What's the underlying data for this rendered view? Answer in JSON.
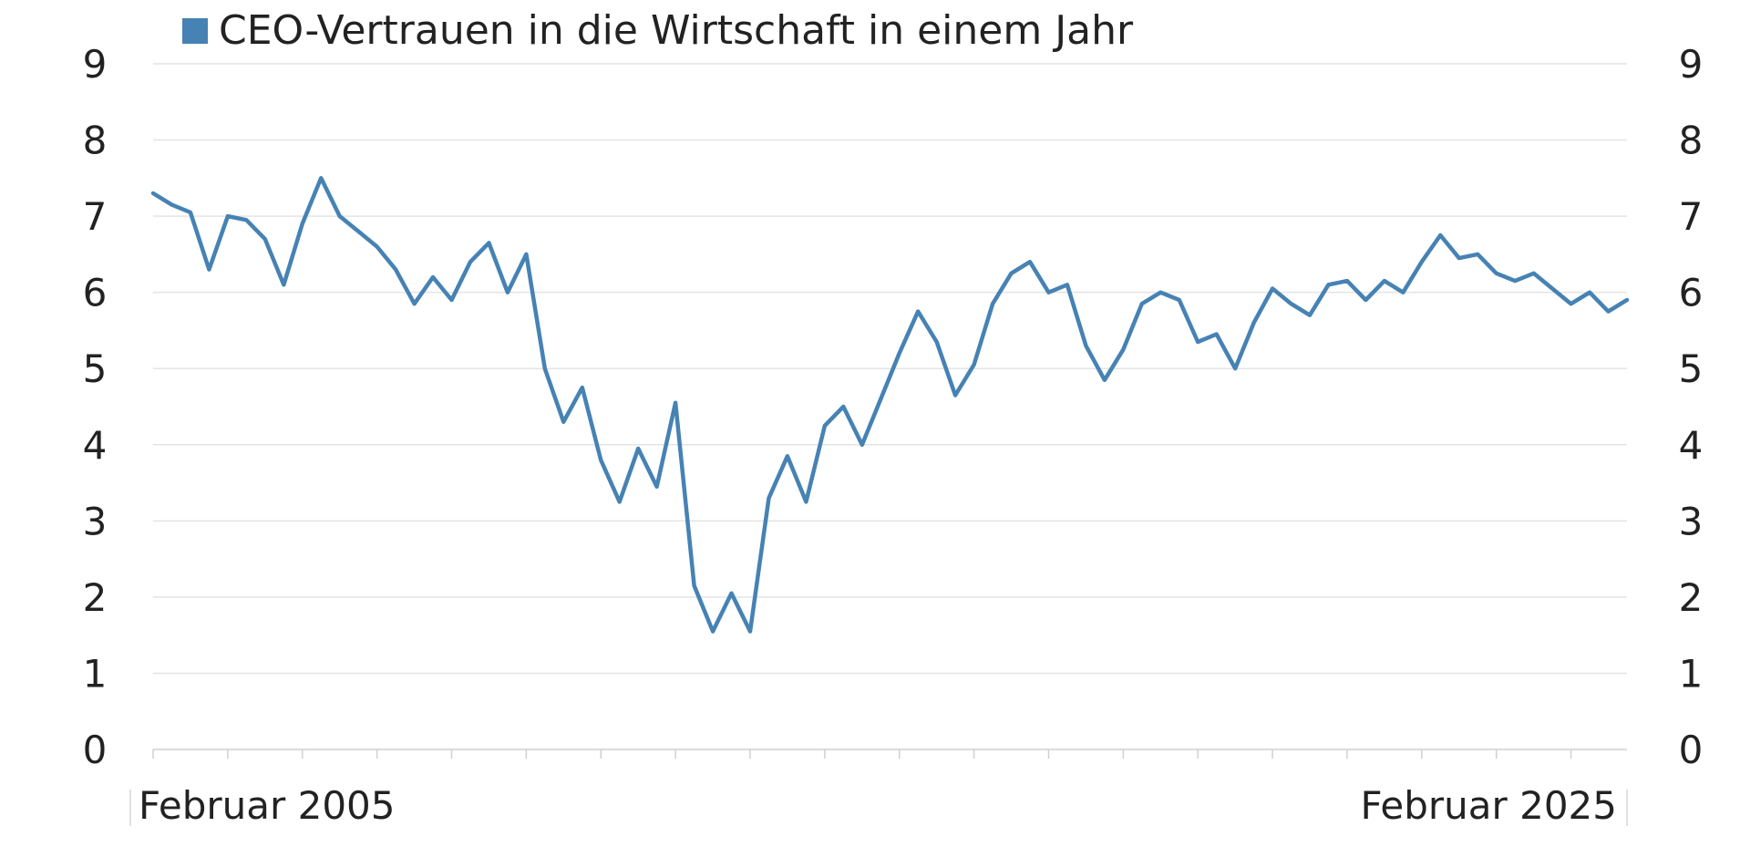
{
  "chart_data": {
    "type": "line",
    "legend": {
      "label": "CEO-Vertrauen in die Wirtschaft in einem Jahr",
      "color": "#4682b4",
      "placement": "top-left"
    },
    "x_start_label": "Februar 2005",
    "x_end_label": "Februar 2025",
    "ylim": [
      0,
      9
    ],
    "yticks": [
      "0",
      "1",
      "2",
      "3",
      "4",
      "5",
      "6",
      "7",
      "8",
      "9"
    ],
    "grid": true,
    "series": [
      {
        "color": "#4682b4",
        "points": [
          [
            "2005-02",
            7.3
          ],
          [
            "2005-05",
            7.15
          ],
          [
            "2005-08",
            7.05
          ],
          [
            "2005-11",
            6.3
          ],
          [
            "2006-02",
            7.0
          ],
          [
            "2006-05",
            6.95
          ],
          [
            "2006-08",
            6.7
          ],
          [
            "2006-11",
            6.1
          ],
          [
            "2007-02",
            6.9
          ],
          [
            "2007-05",
            7.5
          ],
          [
            "2007-08",
            7.0
          ],
          [
            "2007-11",
            6.8
          ],
          [
            "2008-02",
            6.6
          ],
          [
            "2008-05",
            6.3
          ],
          [
            "2008-08",
            5.85
          ],
          [
            "2008-11",
            6.2
          ],
          [
            "2009-02",
            5.9
          ],
          [
            "2009-05",
            6.4
          ],
          [
            "2009-08",
            6.65
          ],
          [
            "2009-11",
            6.0
          ],
          [
            "2010-02",
            6.5
          ],
          [
            "2010-05",
            5.0
          ],
          [
            "2010-08",
            4.3
          ],
          [
            "2010-11",
            4.75
          ],
          [
            "2011-02",
            3.8
          ],
          [
            "2011-05",
            3.25
          ],
          [
            "2011-08",
            3.95
          ],
          [
            "2011-11",
            3.45
          ],
          [
            "2012-02",
            4.55
          ],
          [
            "2012-05",
            2.15
          ],
          [
            "2012-08",
            1.55
          ],
          [
            "2012-11",
            2.05
          ],
          [
            "2013-02",
            1.55
          ],
          [
            "2013-05",
            3.3
          ],
          [
            "2013-08",
            3.85
          ],
          [
            "2013-11",
            3.25
          ],
          [
            "2014-02",
            4.25
          ],
          [
            "2014-05",
            4.5
          ],
          [
            "2014-08",
            4.0
          ],
          [
            "2014-11",
            4.6
          ],
          [
            "2015-02",
            5.2
          ],
          [
            "2015-05",
            5.75
          ],
          [
            "2015-08",
            5.35
          ],
          [
            "2015-11",
            4.65
          ],
          [
            "2016-02",
            5.05
          ],
          [
            "2016-05",
            5.85
          ],
          [
            "2016-08",
            6.25
          ],
          [
            "2016-11",
            6.4
          ],
          [
            "2017-02",
            6.0
          ],
          [
            "2017-05",
            6.1
          ],
          [
            "2017-08",
            5.3
          ],
          [
            "2017-11",
            4.85
          ],
          [
            "2018-02",
            5.25
          ],
          [
            "2018-05",
            5.85
          ],
          [
            "2018-08",
            6.0
          ],
          [
            "2018-11",
            5.9
          ],
          [
            "2019-02",
            5.35
          ],
          [
            "2019-05",
            5.45
          ],
          [
            "2019-08",
            5.0
          ],
          [
            "2019-11",
            5.6
          ],
          [
            "2020-02",
            6.05
          ],
          [
            "2020-05",
            5.85
          ],
          [
            "2020-08",
            5.7
          ],
          [
            "2020-11",
            6.1
          ],
          [
            "2021-02",
            6.15
          ],
          [
            "2021-05",
            5.9
          ],
          [
            "2021-08",
            6.15
          ],
          [
            "2021-11",
            6.0
          ],
          [
            "2022-02",
            6.4
          ],
          [
            "2022-05",
            6.75
          ],
          [
            "2022-08",
            6.45
          ],
          [
            "2022-11",
            6.5
          ],
          [
            "2023-02",
            6.25
          ],
          [
            "2023-05",
            6.15
          ],
          [
            "2023-08",
            6.25
          ],
          [
            "2023-11",
            6.05
          ],
          [
            "2024-02",
            5.85
          ],
          [
            "2024-05",
            6.0
          ],
          [
            "2024-08",
            5.75
          ],
          [
            "2024-11",
            5.9
          ]
        ]
      }
    ]
  }
}
